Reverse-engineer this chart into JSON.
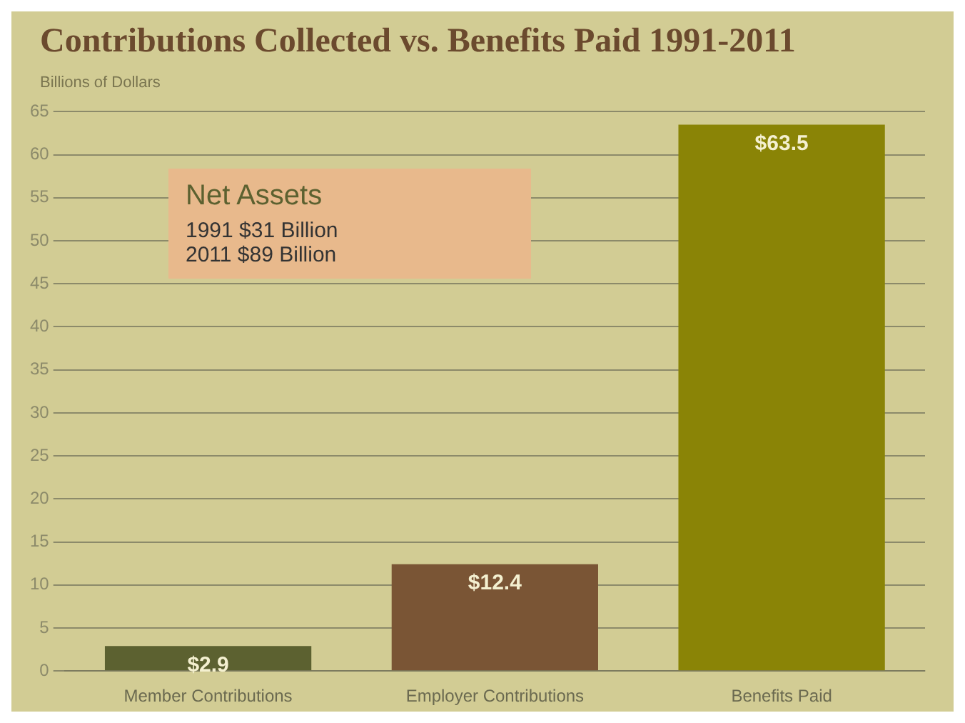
{
  "chart_data": {
    "type": "bar",
    "title": "Contributions Collected vs. Benefits Paid 1991-2011",
    "ylabel": "Billions of Dollars",
    "categories": [
      "Member Contributions",
      "Employer Contributions",
      "Benefits Paid"
    ],
    "values": [
      2.9,
      12.4,
      63.5
    ],
    "colors": [
      "#5c6130",
      "#7a5535",
      "#8a8406"
    ],
    "value_labels": [
      "$2.9",
      "$12.4",
      "$63.5"
    ],
    "ylim": [
      0,
      65
    ],
    "yticks": [
      0,
      5,
      10,
      15,
      20,
      25,
      30,
      35,
      40,
      45,
      50,
      55,
      60,
      65
    ],
    "grid": "y",
    "annotations": [
      "Net Assets",
      "1991  $31 Billion",
      "2011  $89 Billion"
    ]
  }
}
